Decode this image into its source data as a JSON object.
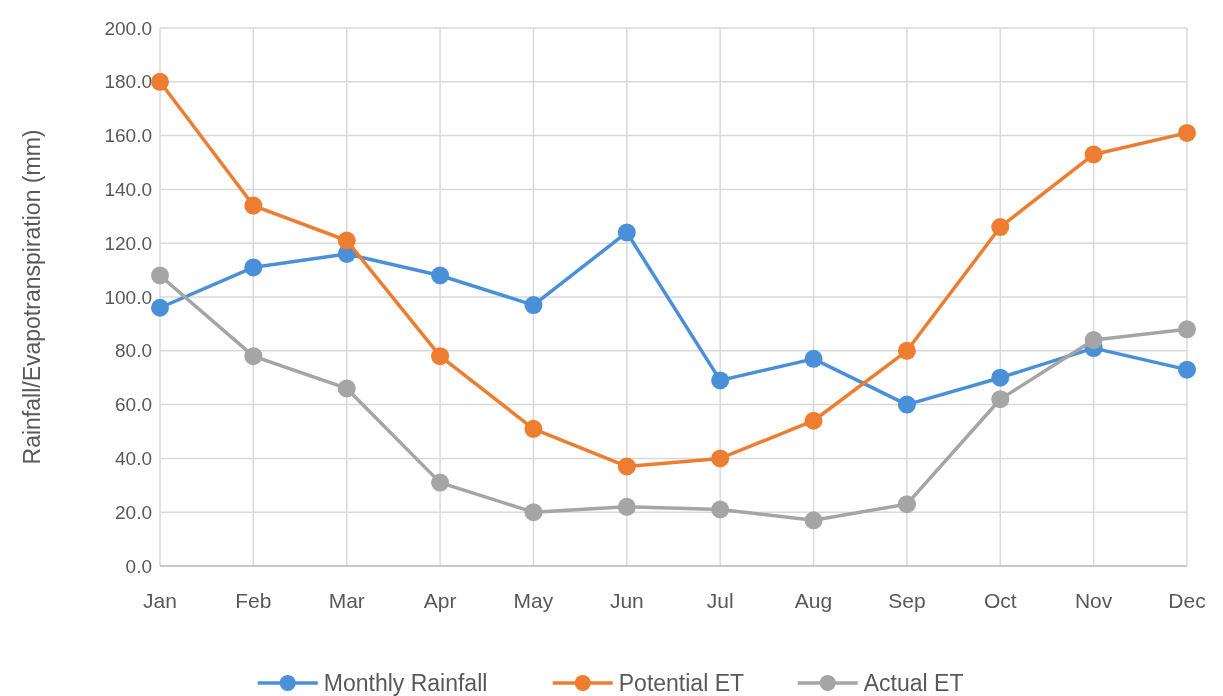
{
  "chart_data": {
    "type": "line",
    "ylabel": "Rainfall/Evapotranspiration (mm)",
    "categories": [
      "Jan",
      "Feb",
      "Mar",
      "Apr",
      "May",
      "Jun",
      "Jul",
      "Aug",
      "Sep",
      "Oct",
      "Nov",
      "Dec"
    ],
    "series": [
      {
        "name": "Monthly Rainfall",
        "color": "#4a90d9",
        "values": [
          96,
          111,
          116,
          108,
          97,
          124,
          69,
          77,
          60,
          70,
          81,
          73
        ]
      },
      {
        "name": "Potential ET",
        "color": "#ed7d31",
        "values": [
          180,
          134,
          121,
          78,
          51,
          37,
          40,
          54,
          80,
          126,
          153,
          161
        ]
      },
      {
        "name": "Actual ET",
        "color": "#a5a5a5",
        "values": [
          108,
          78,
          66,
          31,
          20,
          22,
          21,
          17,
          23,
          62,
          84,
          88
        ]
      }
    ],
    "ylim": [
      0,
      200
    ],
    "yticks": [
      {
        "value": 0,
        "label": "0.0"
      },
      {
        "value": 20,
        "label": "20.0"
      },
      {
        "value": 40,
        "label": "40.0"
      },
      {
        "value": 60,
        "label": "60.0"
      },
      {
        "value": 80,
        "label": "80.0"
      },
      {
        "value": 100,
        "label": "100.0"
      },
      {
        "value": 120,
        "label": "120.0"
      },
      {
        "value": 140,
        "label": "140.0"
      },
      {
        "value": 160,
        "label": "160.0"
      },
      {
        "value": 180,
        "label": "180.0"
      },
      {
        "value": 200,
        "label": "200.0"
      }
    ],
    "grid": true,
    "legend": "bottom",
    "marker": "circle",
    "line_style": "solid"
  }
}
